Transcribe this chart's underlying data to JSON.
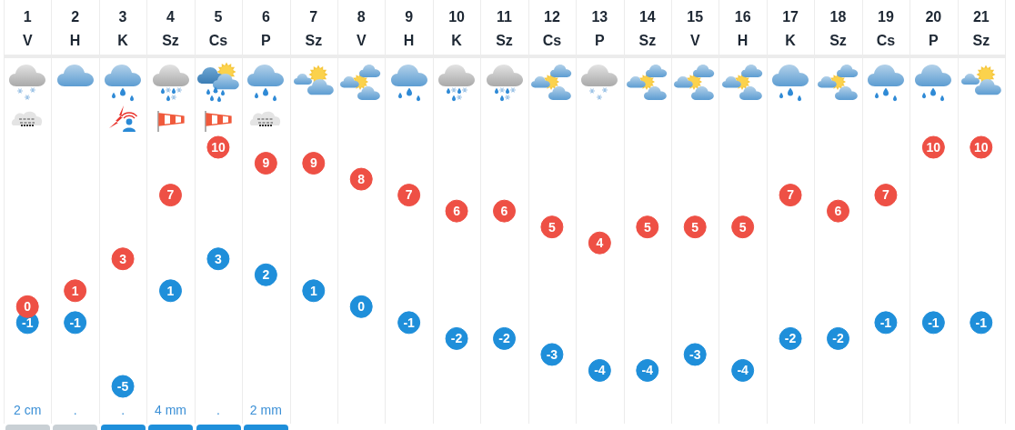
{
  "chart_data": {
    "type": "scatter",
    "categories": [
      "1\nV",
      "2\nH",
      "3\nK",
      "4\nSz",
      "5\nCs",
      "6\nP",
      "7\nSz",
      "8\nV",
      "9\nH",
      "10\nK",
      "11\nSz",
      "12\nCs",
      "13\nP",
      "14\nSz",
      "15\nV",
      "16\nH",
      "17\nK",
      "18\nSz",
      "19\nCs",
      "20\nP",
      "21\nSz"
    ],
    "series": [
      {
        "color": "#ee5045",
        "values": [
          0,
          1,
          3,
          7,
          10,
          9,
          9,
          8,
          7,
          6,
          6,
          5,
          4,
          5,
          5,
          5,
          7,
          6,
          7,
          10,
          10
        ]
      },
      {
        "color": "#1f8fda",
        "values": [
          -1,
          -1,
          -5,
          1,
          3,
          2,
          1,
          0,
          -1,
          -2,
          -2,
          -3,
          -4,
          -4,
          -3,
          -4,
          -2,
          -2,
          -1,
          -1,
          -1
        ]
      }
    ],
    "marker": "circle",
    "data_labels": true,
    "grid": "x",
    "annotations": [
      "2 cm",
      ".",
      ".",
      "4 mm",
      ".",
      "2 mm"
    ]
  }
}
